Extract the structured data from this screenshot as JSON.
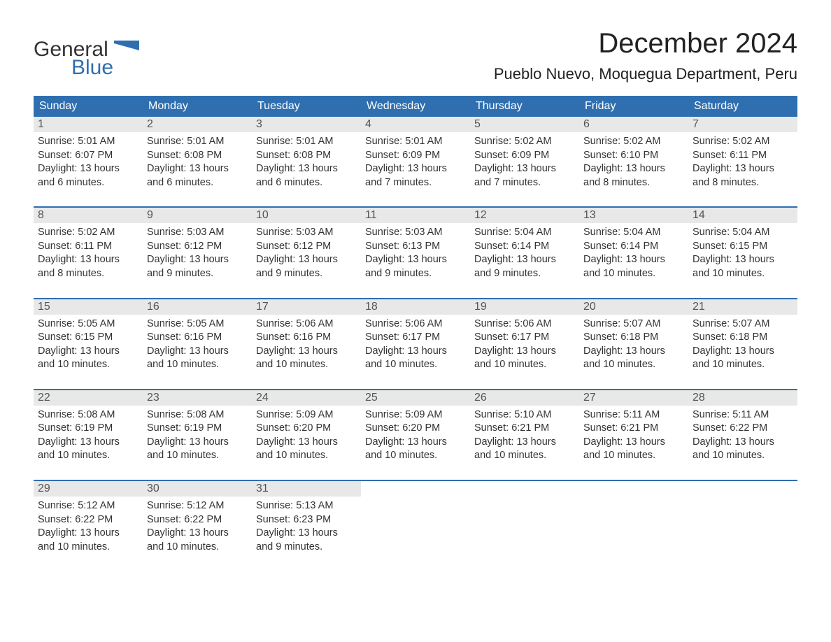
{
  "logo": {
    "word1": "General",
    "word2": "Blue",
    "flag_color": "#2f6fb0"
  },
  "title": "December 2024",
  "location": "Pueblo Nuevo, Moquegua Department, Peru",
  "colors": {
    "header_bg": "#2f6fb0",
    "header_text": "#ffffff",
    "daynum_bg": "#e8e8e8",
    "daynum_text": "#555555",
    "body_text": "#333333",
    "accent": "#2f6fb0",
    "page_bg": "#ffffff"
  },
  "typography": {
    "title_fontsize": 40,
    "location_fontsize": 22,
    "header_fontsize": 16,
    "cell_fontsize": 14.5
  },
  "day_headers": [
    "Sunday",
    "Monday",
    "Tuesday",
    "Wednesday",
    "Thursday",
    "Friday",
    "Saturday"
  ],
  "weeks": [
    [
      {
        "n": "1",
        "sunrise": "5:01 AM",
        "sunset": "6:07 PM",
        "dl1": "Daylight: 13 hours",
        "dl2": "and 6 minutes."
      },
      {
        "n": "2",
        "sunrise": "5:01 AM",
        "sunset": "6:08 PM",
        "dl1": "Daylight: 13 hours",
        "dl2": "and 6 minutes."
      },
      {
        "n": "3",
        "sunrise": "5:01 AM",
        "sunset": "6:08 PM",
        "dl1": "Daylight: 13 hours",
        "dl2": "and 6 minutes."
      },
      {
        "n": "4",
        "sunrise": "5:01 AM",
        "sunset": "6:09 PM",
        "dl1": "Daylight: 13 hours",
        "dl2": "and 7 minutes."
      },
      {
        "n": "5",
        "sunrise": "5:02 AM",
        "sunset": "6:09 PM",
        "dl1": "Daylight: 13 hours",
        "dl2": "and 7 minutes."
      },
      {
        "n": "6",
        "sunrise": "5:02 AM",
        "sunset": "6:10 PM",
        "dl1": "Daylight: 13 hours",
        "dl2": "and 8 minutes."
      },
      {
        "n": "7",
        "sunrise": "5:02 AM",
        "sunset": "6:11 PM",
        "dl1": "Daylight: 13 hours",
        "dl2": "and 8 minutes."
      }
    ],
    [
      {
        "n": "8",
        "sunrise": "5:02 AM",
        "sunset": "6:11 PM",
        "dl1": "Daylight: 13 hours",
        "dl2": "and 8 minutes."
      },
      {
        "n": "9",
        "sunrise": "5:03 AM",
        "sunset": "6:12 PM",
        "dl1": "Daylight: 13 hours",
        "dl2": "and 9 minutes."
      },
      {
        "n": "10",
        "sunrise": "5:03 AM",
        "sunset": "6:12 PM",
        "dl1": "Daylight: 13 hours",
        "dl2": "and 9 minutes."
      },
      {
        "n": "11",
        "sunrise": "5:03 AM",
        "sunset": "6:13 PM",
        "dl1": "Daylight: 13 hours",
        "dl2": "and 9 minutes."
      },
      {
        "n": "12",
        "sunrise": "5:04 AM",
        "sunset": "6:14 PM",
        "dl1": "Daylight: 13 hours",
        "dl2": "and 9 minutes."
      },
      {
        "n": "13",
        "sunrise": "5:04 AM",
        "sunset": "6:14 PM",
        "dl1": "Daylight: 13 hours",
        "dl2": "and 10 minutes."
      },
      {
        "n": "14",
        "sunrise": "5:04 AM",
        "sunset": "6:15 PM",
        "dl1": "Daylight: 13 hours",
        "dl2": "and 10 minutes."
      }
    ],
    [
      {
        "n": "15",
        "sunrise": "5:05 AM",
        "sunset": "6:15 PM",
        "dl1": "Daylight: 13 hours",
        "dl2": "and 10 minutes."
      },
      {
        "n": "16",
        "sunrise": "5:05 AM",
        "sunset": "6:16 PM",
        "dl1": "Daylight: 13 hours",
        "dl2": "and 10 minutes."
      },
      {
        "n": "17",
        "sunrise": "5:06 AM",
        "sunset": "6:16 PM",
        "dl1": "Daylight: 13 hours",
        "dl2": "and 10 minutes."
      },
      {
        "n": "18",
        "sunrise": "5:06 AM",
        "sunset": "6:17 PM",
        "dl1": "Daylight: 13 hours",
        "dl2": "and 10 minutes."
      },
      {
        "n": "19",
        "sunrise": "5:06 AM",
        "sunset": "6:17 PM",
        "dl1": "Daylight: 13 hours",
        "dl2": "and 10 minutes."
      },
      {
        "n": "20",
        "sunrise": "5:07 AM",
        "sunset": "6:18 PM",
        "dl1": "Daylight: 13 hours",
        "dl2": "and 10 minutes."
      },
      {
        "n": "21",
        "sunrise": "5:07 AM",
        "sunset": "6:18 PM",
        "dl1": "Daylight: 13 hours",
        "dl2": "and 10 minutes."
      }
    ],
    [
      {
        "n": "22",
        "sunrise": "5:08 AM",
        "sunset": "6:19 PM",
        "dl1": "Daylight: 13 hours",
        "dl2": "and 10 minutes."
      },
      {
        "n": "23",
        "sunrise": "5:08 AM",
        "sunset": "6:19 PM",
        "dl1": "Daylight: 13 hours",
        "dl2": "and 10 minutes."
      },
      {
        "n": "24",
        "sunrise": "5:09 AM",
        "sunset": "6:20 PM",
        "dl1": "Daylight: 13 hours",
        "dl2": "and 10 minutes."
      },
      {
        "n": "25",
        "sunrise": "5:09 AM",
        "sunset": "6:20 PM",
        "dl1": "Daylight: 13 hours",
        "dl2": "and 10 minutes."
      },
      {
        "n": "26",
        "sunrise": "5:10 AM",
        "sunset": "6:21 PM",
        "dl1": "Daylight: 13 hours",
        "dl2": "and 10 minutes."
      },
      {
        "n": "27",
        "sunrise": "5:11 AM",
        "sunset": "6:21 PM",
        "dl1": "Daylight: 13 hours",
        "dl2": "and 10 minutes."
      },
      {
        "n": "28",
        "sunrise": "5:11 AM",
        "sunset": "6:22 PM",
        "dl1": "Daylight: 13 hours",
        "dl2": "and 10 minutes."
      }
    ],
    [
      {
        "n": "29",
        "sunrise": "5:12 AM",
        "sunset": "6:22 PM",
        "dl1": "Daylight: 13 hours",
        "dl2": "and 10 minutes."
      },
      {
        "n": "30",
        "sunrise": "5:12 AM",
        "sunset": "6:22 PM",
        "dl1": "Daylight: 13 hours",
        "dl2": "and 10 minutes."
      },
      {
        "n": "31",
        "sunrise": "5:13 AM",
        "sunset": "6:23 PM",
        "dl1": "Daylight: 13 hours",
        "dl2": "and 9 minutes."
      },
      null,
      null,
      null,
      null
    ]
  ]
}
